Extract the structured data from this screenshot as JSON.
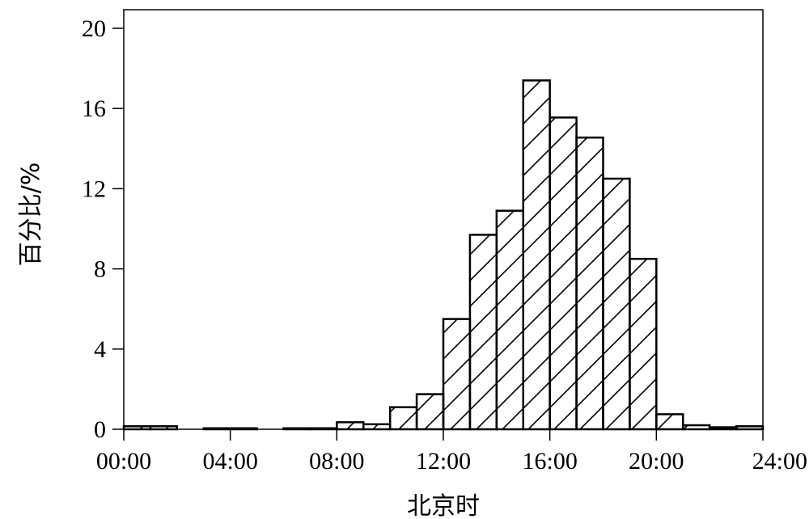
{
  "chart_data": {
    "type": "bar",
    "title": "",
    "xlabel": "北京时",
    "ylabel": "百分比/%",
    "xlim": [
      0,
      24
    ],
    "ylim": [
      0,
      20
    ],
    "xticks": [
      "00:00",
      "04:00",
      "08:00",
      "12:00",
      "16:00",
      "20:00",
      "24:00"
    ],
    "yticks": [
      "0",
      "4",
      "8",
      "12",
      "16",
      "20"
    ],
    "grid": false,
    "legend": "none",
    "bar_style": "white fill, diagonal hatch, black outline",
    "bin_width_hours": 1,
    "x": [
      0.5,
      1.5,
      2.5,
      3.5,
      4.5,
      5.5,
      6.5,
      7.5,
      8.5,
      9.5,
      10.5,
      11.5,
      12.5,
      13.5,
      14.5,
      15.5,
      16.5,
      17.5,
      18.5,
      19.5,
      20.5,
      21.5,
      22.5,
      23.5
    ],
    "values": [
      0.15,
      0.15,
      0.0,
      0.05,
      0.05,
      0.0,
      0.05,
      0.05,
      0.35,
      0.25,
      1.1,
      1.75,
      5.5,
      9.7,
      10.9,
      17.4,
      15.55,
      14.55,
      12.5,
      8.5,
      0.75,
      0.2,
      0.1,
      0.15
    ]
  }
}
